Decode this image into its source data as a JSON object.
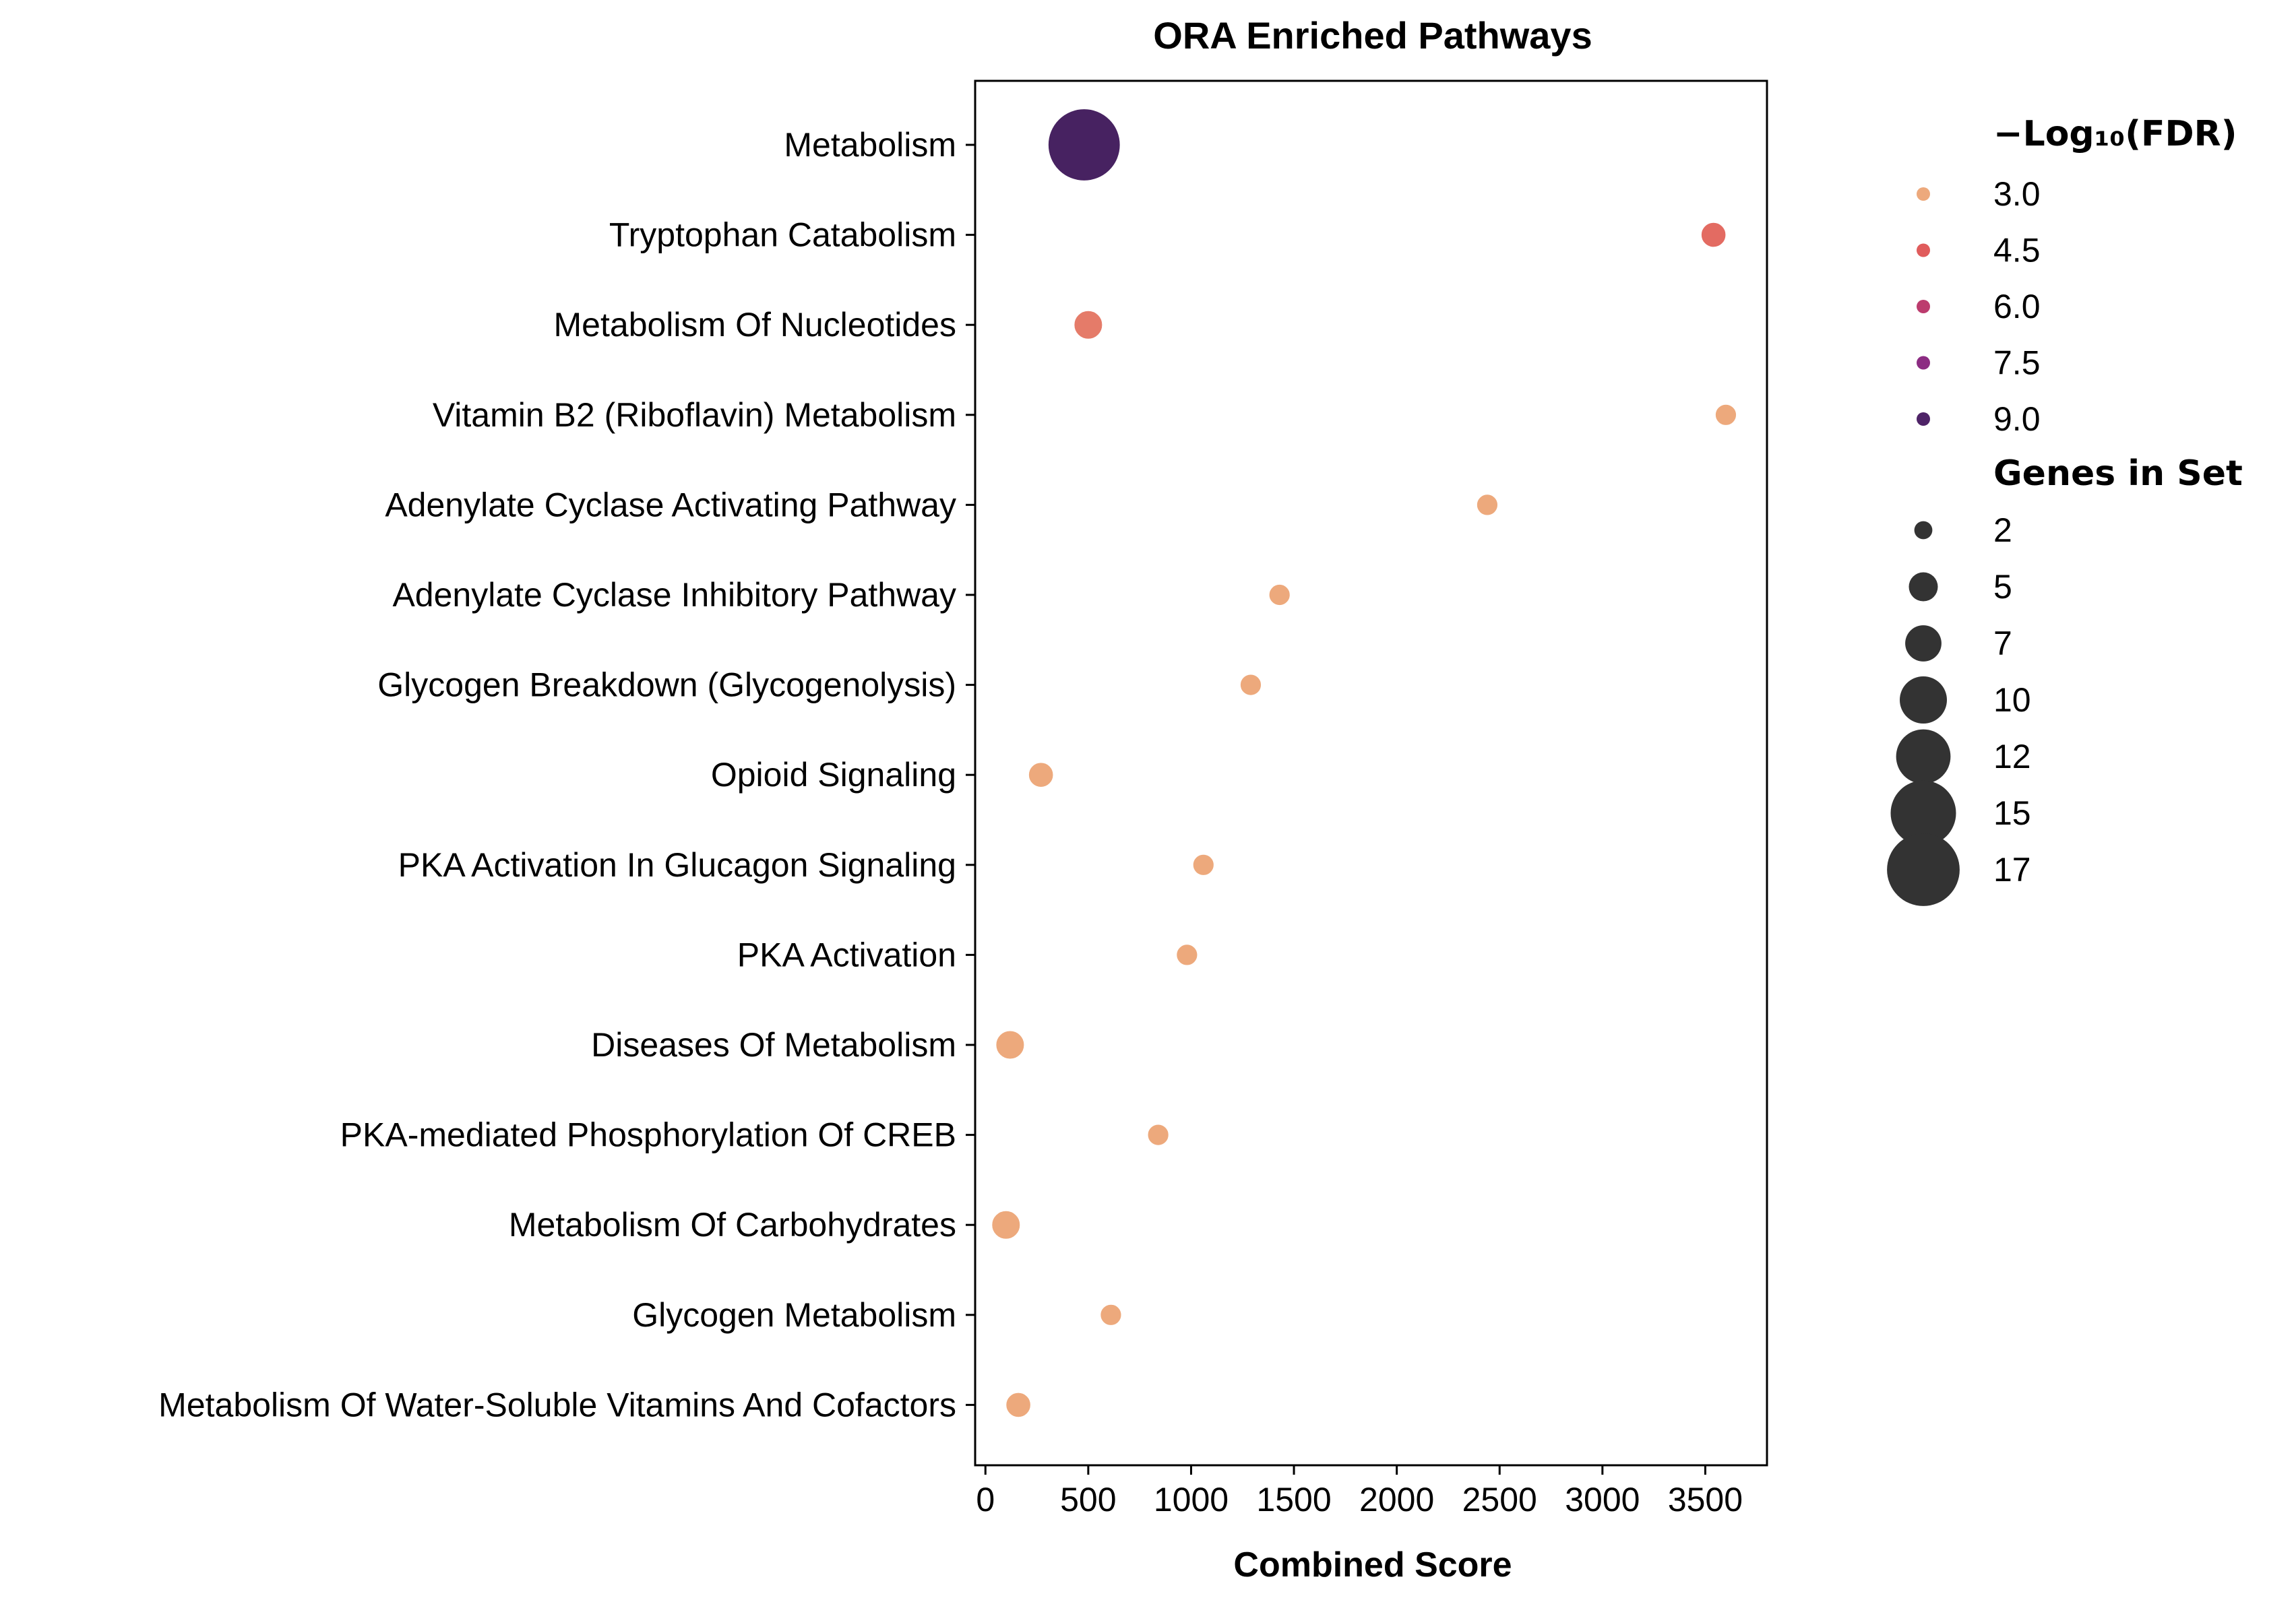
{
  "chart_data": {
    "type": "scatter",
    "title": "ORA Enriched Pathways",
    "xlabel": "Combined Score",
    "ylabel": "",
    "xlim": [
      -50,
      3800
    ],
    "xticks": [
      0,
      500,
      1000,
      1500,
      2000,
      2500,
      3000,
      3500
    ],
    "grid": false,
    "legend_position": "right",
    "categories": [
      "Metabolism",
      "Tryptophan Catabolism",
      "Metabolism Of Nucleotides",
      "Vitamin B2 (Riboflavin) Metabolism",
      "Adenylate Cyclase Activating Pathway",
      "Adenylate Cyclase Inhibitory Pathway",
      "Glycogen Breakdown (Glycogenolysis)",
      "Opioid Signaling",
      "PKA Activation In Glucagon Signaling",
      "PKA Activation",
      "Diseases Of Metabolism",
      "PKA-mediated Phosphorylation Of CREB",
      "Metabolism Of Carbohydrates",
      "Glycogen Metabolism",
      "Metabolism Of Water-Soluble Vitamins And Cofactors"
    ],
    "points": [
      {
        "term": "Metabolism",
        "combined_score": 480,
        "neg_log10_fdr": 9.4,
        "genes_in_set": 17
      },
      {
        "term": "Tryptophan Catabolism",
        "combined_score": 3540,
        "neg_log10_fdr": 4.2,
        "genes_in_set": 4
      },
      {
        "term": "Metabolism Of Nucleotides",
        "combined_score": 500,
        "neg_log10_fdr": 3.9,
        "genes_in_set": 5
      },
      {
        "term": "Vitamin B2 (Riboflavin) Metabolism",
        "combined_score": 3600,
        "neg_log10_fdr": 3.0,
        "genes_in_set": 3
      },
      {
        "term": "Adenylate Cyclase Activating Pathway",
        "combined_score": 2440,
        "neg_log10_fdr": 3.0,
        "genes_in_set": 3
      },
      {
        "term": "Adenylate Cyclase Inhibitory Pathway",
        "combined_score": 1430,
        "neg_log10_fdr": 3.0,
        "genes_in_set": 3
      },
      {
        "term": "Glycogen Breakdown (Glycogenolysis)",
        "combined_score": 1290,
        "neg_log10_fdr": 3.0,
        "genes_in_set": 3
      },
      {
        "term": "Opioid Signaling",
        "combined_score": 270,
        "neg_log10_fdr": 3.0,
        "genes_in_set": 4
      },
      {
        "term": "PKA Activation In Glucagon Signaling",
        "combined_score": 1060,
        "neg_log10_fdr": 3.0,
        "genes_in_set": 3
      },
      {
        "term": "PKA Activation",
        "combined_score": 980,
        "neg_log10_fdr": 3.0,
        "genes_in_set": 3
      },
      {
        "term": "Diseases Of Metabolism",
        "combined_score": 120,
        "neg_log10_fdr": 3.0,
        "genes_in_set": 5
      },
      {
        "term": "PKA-mediated Phosphorylation Of CREB",
        "combined_score": 840,
        "neg_log10_fdr": 3.0,
        "genes_in_set": 3
      },
      {
        "term": "Metabolism Of Carbohydrates",
        "combined_score": 100,
        "neg_log10_fdr": 3.0,
        "genes_in_set": 5
      },
      {
        "term": "Glycogen Metabolism",
        "combined_score": 610,
        "neg_log10_fdr": 3.0,
        "genes_in_set": 3
      },
      {
        "term": "Metabolism Of Water-Soluble Vitamins And Cofactors",
        "combined_score": 160,
        "neg_log10_fdr": 3.0,
        "genes_in_set": 4
      }
    ],
    "legend_color": {
      "title": "−Log₁₀(FDR)",
      "entries": [
        {
          "label": "3.0",
          "value": 3.0,
          "color": "#eda97c"
        },
        {
          "label": "4.5",
          "value": 4.5,
          "color": "#e05c5c"
        },
        {
          "label": "6.0",
          "value": 6.0,
          "color": "#bc3c6e"
        },
        {
          "label": "7.5",
          "value": 7.5,
          "color": "#8c2c82"
        },
        {
          "label": "9.0",
          "value": 9.0,
          "color": "#4e2367"
        }
      ]
    },
    "legend_size": {
      "title": "Genes in Set",
      "color": "#333333",
      "entries": [
        {
          "label": "2",
          "value": 2
        },
        {
          "label": "5",
          "value": 5
        },
        {
          "label": "7",
          "value": 7
        },
        {
          "label": "10",
          "value": 10
        },
        {
          "label": "12",
          "value": 12
        },
        {
          "label": "15",
          "value": 15
        },
        {
          "label": "17",
          "value": 17
        }
      ]
    },
    "colormap": [
      {
        "v": 3.0,
        "color": "#eda97c"
      },
      {
        "v": 4.5,
        "color": "#e05c5c"
      },
      {
        "v": 6.0,
        "color": "#bc3c6e"
      },
      {
        "v": 7.5,
        "color": "#8c2c82"
      },
      {
        "v": 9.0,
        "color": "#4e2367"
      },
      {
        "v": 9.5,
        "color": "#452260"
      }
    ]
  }
}
